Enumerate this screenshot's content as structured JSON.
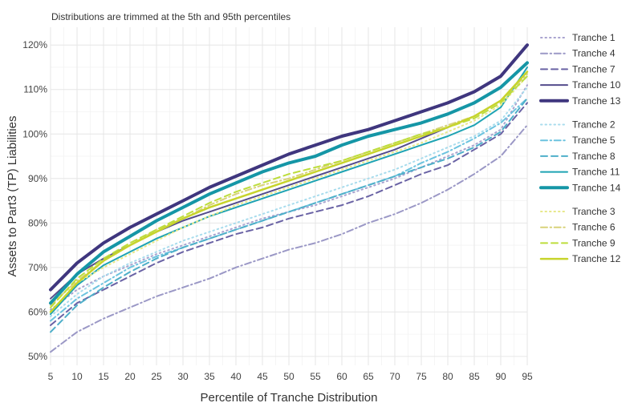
{
  "chart_data": {
    "type": "line",
    "subtitle": "Distributions are trimmed at the 5th and 95th percentiles",
    "xlabel": "Percentile of Tranche Distribution",
    "ylabel": "Assets to Part3 (TP) Liabilities",
    "xlim": [
      5,
      95
    ],
    "ylim": [
      48,
      124
    ],
    "xticks": [
      5,
      10,
      15,
      20,
      25,
      30,
      35,
      40,
      45,
      50,
      55,
      60,
      65,
      70,
      75,
      80,
      85,
      90,
      95
    ],
    "yticks": [
      50,
      60,
      70,
      80,
      90,
      100,
      110,
      120
    ],
    "ytick_labels": [
      "50%",
      "60%",
      "70%",
      "80%",
      "90%",
      "100%",
      "110%",
      "120%"
    ],
    "grid": true,
    "legend_position": "right",
    "x": [
      5,
      10,
      15,
      20,
      25,
      30,
      35,
      40,
      45,
      50,
      55,
      60,
      65,
      70,
      75,
      80,
      85,
      90,
      95
    ],
    "series": [
      {
        "name": "Tranche 1",
        "color": "#a9a3cf",
        "dash": "dot",
        "width": 2,
        "group": 1,
        "values": [
          60.5,
          65,
          68,
          70.5,
          73,
          75,
          77,
          79,
          81,
          82.5,
          84,
          86,
          88,
          90,
          92.5,
          95,
          97.5,
          101,
          111
        ]
      },
      {
        "name": "Tranche 4",
        "color": "#9b98c6",
        "dash": "dashdot",
        "width": 2,
        "group": 1,
        "values": [
          51,
          55.5,
          58.5,
          61,
          63.5,
          65.5,
          67.5,
          70,
          72,
          74,
          75.5,
          77.5,
          80,
          82,
          84.5,
          87.5,
          91,
          95,
          102
        ]
      },
      {
        "name": "Tranche 7",
        "color": "#6a63a5",
        "dash": "dash",
        "width": 2,
        "group": 1,
        "values": [
          57,
          62,
          65,
          68,
          71,
          73.5,
          75.5,
          77.5,
          79,
          81,
          82.5,
          84,
          86,
          88.5,
          91,
          93,
          96.5,
          100,
          107
        ]
      },
      {
        "name": "Tranche 10",
        "color": "#544c8c",
        "dash": "solid",
        "width": 2,
        "group": 1,
        "values": [
          63,
          68.5,
          72,
          75,
          78,
          80.5,
          82.5,
          84.5,
          86.5,
          88.5,
          90.5,
          92.5,
          94.5,
          96.5,
          99,
          101.5,
          104,
          107.5,
          114
        ]
      },
      {
        "name": "Tranche 13",
        "color": "#3f367e",
        "dash": "solid",
        "width": 4,
        "group": 1,
        "values": [
          65,
          71,
          75.5,
          79,
          82,
          85,
          88,
          90.5,
          93,
          95.5,
          97.5,
          99.5,
          101,
          103,
          105,
          107,
          109.5,
          113,
          120
        ]
      },
      {
        "name": "Tranche 2",
        "color": "#a8dced",
        "dash": "dot",
        "width": 2,
        "group": 2,
        "values": [
          59,
          64,
          68,
          71,
          73.5,
          76,
          78,
          80,
          82,
          84,
          86,
          88,
          90,
          92,
          94.5,
          97,
          99.5,
          103,
          110.5
        ]
      },
      {
        "name": "Tranche 5",
        "color": "#6cc3df",
        "dash": "dashdot",
        "width": 2,
        "group": 2,
        "values": [
          58,
          63,
          66.5,
          70,
          72.5,
          74.5,
          76.5,
          78.5,
          80.5,
          82.5,
          84.5,
          86.5,
          88.5,
          90.5,
          93.5,
          96,
          99,
          102.5,
          108
        ]
      },
      {
        "name": "Tranche 8",
        "color": "#4eafc9",
        "dash": "dash",
        "width": 2,
        "group": 2,
        "values": [
          55.5,
          61.5,
          65.5,
          69,
          72,
          74.5,
          76.5,
          78.5,
          80.5,
          82.5,
          84.5,
          86.5,
          88.5,
          90.5,
          92.5,
          94.5,
          97,
          100.5,
          108
        ]
      },
      {
        "name": "Tranche 11",
        "color": "#1ea3b3",
        "dash": "solid",
        "width": 2,
        "group": 2,
        "values": [
          59.5,
          66,
          70.5,
          73.5,
          76.5,
          79,
          81.5,
          83.5,
          85.5,
          87.5,
          89.5,
          91.5,
          93.5,
          95.5,
          97.5,
          99.5,
          102,
          106,
          115
        ]
      },
      {
        "name": "Tranche 14",
        "color": "#1596a6",
        "dash": "solid",
        "width": 4,
        "group": 2,
        "values": [
          62,
          68.5,
          73.5,
          77,
          80.5,
          83.5,
          86.5,
          89,
          91.5,
          93.5,
          95,
          97.5,
          99.5,
          101,
          102.5,
          104.5,
          107,
          110.5,
          116
        ]
      },
      {
        "name": "Tranche 3",
        "color": "#e7e88a",
        "dash": "dot",
        "width": 2,
        "group": 3,
        "values": [
          62,
          66.5,
          70,
          73,
          76,
          79,
          81.5,
          84,
          86,
          88,
          90,
          92,
          94,
          96,
          98,
          100.5,
          103,
          106.5,
          113
        ]
      },
      {
        "name": "Tranche 6",
        "color": "#d8d27a",
        "dash": "dashdot",
        "width": 2,
        "group": 3,
        "values": [
          61.5,
          67,
          71.5,
          75,
          78.5,
          81,
          84,
          86.5,
          88.5,
          90,
          92,
          94,
          96,
          98,
          100,
          102,
          104,
          107.5,
          113.5
        ]
      },
      {
        "name": "Tranche 9",
        "color": "#bddd3c",
        "dash": "dash",
        "width": 2,
        "group": 3,
        "values": [
          61,
          67.5,
          72,
          75.5,
          78.5,
          81.5,
          84.5,
          87,
          89,
          91,
          92.5,
          94,
          96,
          98,
          100,
          101.5,
          103.5,
          107,
          113
        ]
      },
      {
        "name": "Tranche 12",
        "color": "#c7d42c",
        "dash": "solid",
        "width": 2.5,
        "group": 3,
        "values": [
          60,
          66.5,
          71.5,
          75,
          78,
          81,
          83.5,
          85.5,
          87.5,
          89.5,
          91.5,
          93.5,
          95.5,
          97.5,
          99.5,
          101.5,
          104,
          107.5,
          114
        ]
      }
    ]
  }
}
